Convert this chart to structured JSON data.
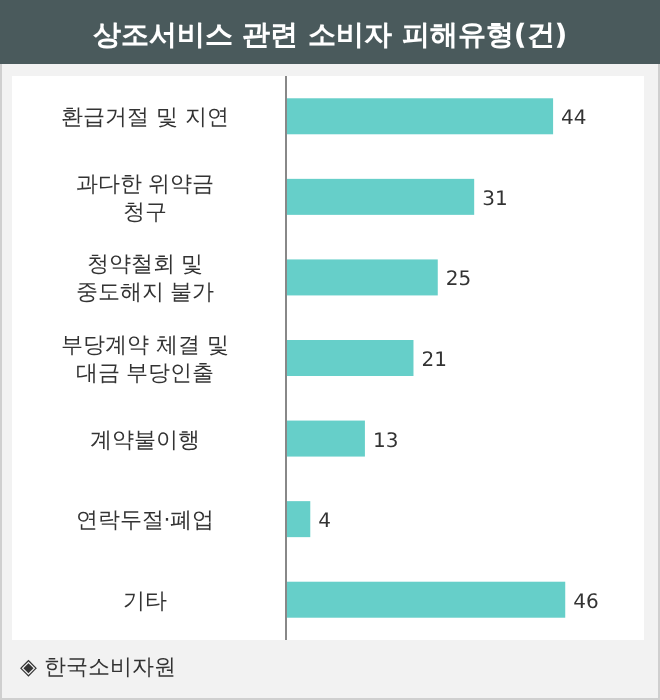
{
  "chart_data": {
    "type": "bar",
    "orientation": "horizontal",
    "title": "상조서비스 관련 소비자 피해유형(건)",
    "categories": [
      "환급거절 및 지연",
      "과다한 위약금\n청구",
      "청약철회 및\n중도해지 불가",
      "부당계약 체결 및\n대금 부당인출",
      "계약불이행",
      "연락두절·폐업",
      "기타"
    ],
    "values": [
      44,
      31,
      25,
      21,
      13,
      4,
      46
    ],
    "color": "#66cfc9",
    "data_labels": true,
    "annotations": [
      "◈ 한국소비자원"
    ]
  }
}
